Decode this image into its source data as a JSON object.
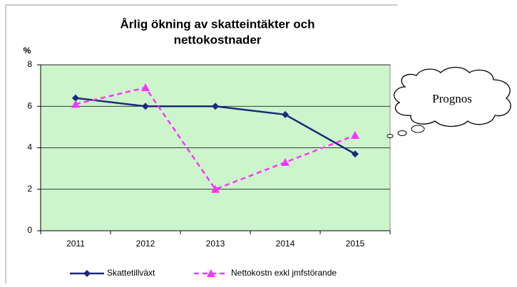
{
  "chart_data": {
    "type": "line",
    "title_lines": [
      "Årlig ökning av skatteintäkter och",
      "nettokostnader"
    ],
    "y_label": "%",
    "categories": [
      "2011",
      "2012",
      "2013",
      "2014",
      "2015"
    ],
    "series": [
      {
        "name": "Skattetillväxt",
        "color": "#1c2a7a",
        "marker": "diamond",
        "dashed": false,
        "values": [
          6.4,
          6.0,
          6.0,
          5.6,
          3.7
        ]
      },
      {
        "name": "Nettokostn exkl jmfstörande",
        "color": "#ff33ff",
        "marker": "triangle",
        "dashed": true,
        "values": [
          6.1,
          6.9,
          2.0,
          3.3,
          4.6
        ]
      }
    ],
    "ylim": [
      0,
      8
    ],
    "yticks": [
      0,
      2,
      4,
      6,
      8
    ],
    "grid": true,
    "plot_color": "#ccf5cc",
    "annotation": "Prognos"
  }
}
